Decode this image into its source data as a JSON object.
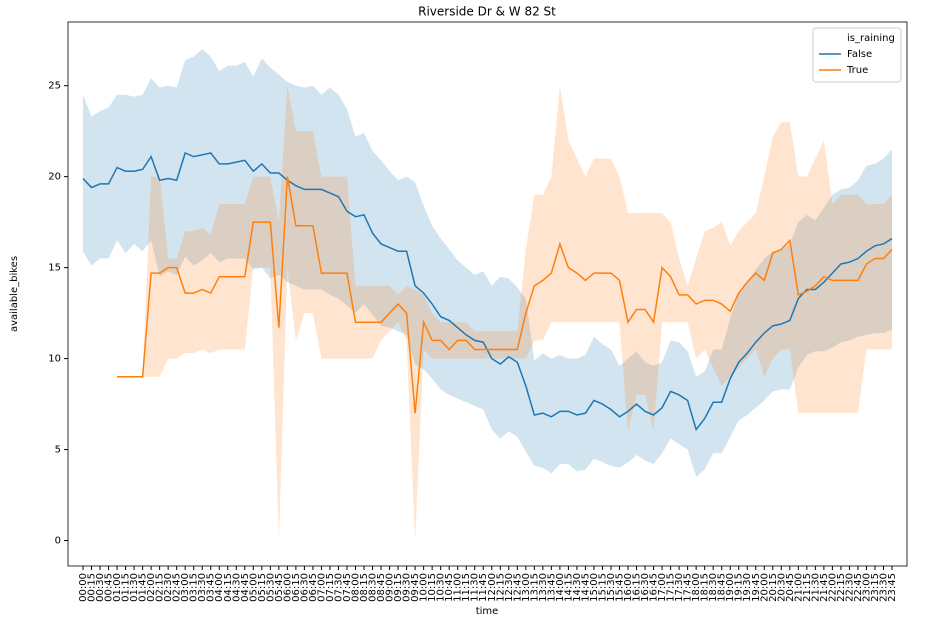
{
  "chart_data": {
    "type": "line",
    "title": "Riverside Dr & W 82 St",
    "x_label": "time",
    "y_label": "available_bikes",
    "legend_title": "is_raining",
    "legend": "upper right",
    "ylim": [
      -1.4,
      28.5
    ],
    "yticks": [
      0,
      5,
      10,
      15,
      20,
      25
    ],
    "grid": false,
    "categories": [
      "00:00",
      "00:15",
      "00:30",
      "00:45",
      "01:00",
      "01:15",
      "01:30",
      "01:45",
      "02:00",
      "02:15",
      "02:30",
      "02:45",
      "03:00",
      "03:15",
      "03:30",
      "03:45",
      "04:00",
      "04:15",
      "04:30",
      "04:45",
      "05:00",
      "05:15",
      "05:30",
      "05:45",
      "06:00",
      "06:15",
      "06:30",
      "06:45",
      "07:00",
      "07:15",
      "07:30",
      "07:45",
      "08:00",
      "08:15",
      "08:30",
      "08:45",
      "09:00",
      "09:15",
      "09:30",
      "09:45",
      "10:00",
      "10:15",
      "10:30",
      "10:45",
      "11:00",
      "11:15",
      "11:30",
      "11:45",
      "12:00",
      "12:15",
      "12:30",
      "12:45",
      "13:00",
      "13:15",
      "13:30",
      "13:45",
      "14:00",
      "14:15",
      "14:30",
      "14:45",
      "15:00",
      "15:15",
      "15:30",
      "15:45",
      "16:00",
      "16:15",
      "16:30",
      "16:45",
      "17:00",
      "17:15",
      "17:30",
      "17:45",
      "18:00",
      "18:15",
      "18:30",
      "18:45",
      "19:00",
      "19:15",
      "19:30",
      "19:45",
      "20:00",
      "20:15",
      "20:30",
      "20:45",
      "21:00",
      "21:15",
      "21:30",
      "21:45",
      "22:00",
      "22:15",
      "22:30",
      "22:45",
      "23:00",
      "23:15",
      "23:30",
      "23:45"
    ],
    "series": [
      {
        "name": "False",
        "color": "#1f77b4",
        "values": [
          19.9,
          19.4,
          19.6,
          19.6,
          20.5,
          20.3,
          20.3,
          20.4,
          21.1,
          19.8,
          19.9,
          19.8,
          21.3,
          21.1,
          21.2,
          21.3,
          20.7,
          20.7,
          20.8,
          20.9,
          20.3,
          20.7,
          20.2,
          20.2,
          19.8,
          19.5,
          19.3,
          19.3,
          19.3,
          19.1,
          18.9,
          18.1,
          17.8,
          17.9,
          16.9,
          16.3,
          16.1,
          15.9,
          15.9,
          14.0,
          13.6,
          13.0,
          12.3,
          12.1,
          11.7,
          11.3,
          11.0,
          10.9,
          10.0,
          9.7,
          10.1,
          9.8,
          8.5,
          6.9,
          7.0,
          6.8,
          7.1,
          7.1,
          6.9,
          7.0,
          7.7,
          7.5,
          7.2,
          6.8,
          7.1,
          7.5,
          7.1,
          6.9,
          7.3,
          8.2,
          8.0,
          7.7,
          6.1,
          6.7,
          7.6,
          7.6,
          8.9,
          9.8,
          10.3,
          10.9,
          11.4,
          11.8,
          11.9,
          12.1,
          13.3,
          13.8,
          13.8,
          14.2,
          14.7,
          15.2,
          15.3,
          15.5,
          15.9,
          16.2,
          16.3,
          16.6
        ],
        "upper": [
          24.5,
          23.3,
          23.6,
          23.8,
          24.5,
          24.5,
          24.4,
          24.5,
          25.4,
          24.9,
          25.0,
          24.9,
          26.4,
          26.6,
          27.0,
          26.6,
          25.8,
          26.1,
          26.1,
          26.3,
          25.5,
          26.5,
          26.0,
          25.6,
          25.2,
          25.0,
          24.9,
          25.0,
          24.5,
          24.9,
          24.5,
          23.7,
          22.2,
          22.4,
          21.4,
          20.9,
          20.3,
          19.8,
          20.0,
          19.7,
          18.4,
          17.3,
          16.6,
          16.0,
          15.4,
          15.0,
          14.6,
          14.8,
          14.0,
          14.5,
          14.4,
          13.9,
          13.3,
          9.9,
          10.3,
          10.0,
          10.2,
          10.0,
          10.0,
          10.2,
          11.2,
          10.8,
          10.5,
          9.6,
          10.0,
          10.4,
          9.8,
          9.6,
          9.8,
          11.0,
          10.9,
          10.4,
          9.0,
          9.3,
          10.5,
          10.5,
          12.2,
          13.6,
          14.2,
          14.9,
          15.5,
          15.9,
          16.0,
          16.3,
          17.5,
          17.9,
          17.6,
          18.3,
          19.0,
          19.3,
          19.4,
          19.8,
          20.6,
          20.7,
          21.0,
          21.5
        ],
        "lower": [
          15.9,
          15.1,
          15.5,
          15.5,
          16.5,
          15.8,
          16.3,
          15.9,
          16.5,
          14.5,
          14.8,
          14.6,
          15.6,
          15.1,
          15.4,
          15.8,
          15.3,
          15.5,
          15.5,
          15.5,
          14.9,
          15.0,
          14.4,
          14.6,
          14.2,
          14.0,
          13.8,
          13.8,
          13.8,
          13.5,
          13.3,
          12.9,
          12.5,
          13.0,
          12.4,
          11.8,
          11.7,
          11.5,
          11.3,
          9.7,
          9.4,
          8.9,
          8.3,
          8.0,
          7.8,
          7.6,
          7.4,
          7.2,
          6.1,
          5.6,
          6.0,
          5.7,
          4.9,
          4.1,
          4.0,
          3.7,
          4.2,
          4.2,
          3.8,
          3.9,
          4.5,
          4.3,
          4.1,
          4.0,
          4.3,
          4.7,
          4.4,
          4.2,
          4.8,
          5.6,
          5.3,
          5.0,
          3.5,
          3.9,
          4.8,
          4.8,
          5.7,
          6.6,
          6.9,
          7.3,
          7.7,
          8.2,
          8.3,
          8.3,
          9.5,
          10.2,
          10.4,
          10.4,
          10.6,
          10.9,
          11.0,
          11.2,
          11.3,
          11.4,
          11.4,
          11.6
        ]
      },
      {
        "name": "True",
        "color": "#ff7f0e",
        "values": [
          null,
          null,
          null,
          null,
          9.0,
          9.0,
          9.0,
          9.0,
          14.7,
          14.7,
          15.0,
          15.0,
          13.6,
          13.6,
          13.8,
          13.6,
          14.5,
          14.5,
          14.5,
          14.5,
          17.5,
          17.5,
          17.5,
          11.7,
          20.0,
          17.3,
          17.3,
          17.3,
          14.7,
          14.7,
          14.7,
          14.7,
          12.0,
          12.0,
          12.0,
          12.0,
          12.5,
          13.0,
          12.5,
          7.0,
          12.0,
          11.0,
          11.0,
          10.5,
          11.0,
          11.0,
          10.5,
          10.5,
          10.5,
          10.5,
          10.5,
          10.5,
          12.5,
          14.0,
          14.3,
          14.7,
          16.3,
          15.0,
          14.7,
          14.3,
          14.7,
          14.7,
          14.7,
          14.3,
          12.0,
          12.7,
          12.7,
          12.0,
          15.0,
          14.5,
          13.5,
          13.5,
          13.0,
          13.2,
          13.2,
          13.0,
          12.6,
          13.6,
          14.2,
          14.7,
          14.3,
          15.8,
          16.0,
          16.5,
          13.5,
          13.7,
          14.0,
          14.5,
          14.3,
          14.3,
          14.3,
          14.3,
          15.2,
          15.5,
          15.5,
          16.0
        ],
        "upper": [
          null,
          null,
          null,
          null,
          9.0,
          9.0,
          9.0,
          9.0,
          20.0,
          20.0,
          15.5,
          15.5,
          17.0,
          17.0,
          17.2,
          16.8,
          18.5,
          18.5,
          18.5,
          18.5,
          20.0,
          20.0,
          20.0,
          17.5,
          25.0,
          22.5,
          22.5,
          22.5,
          20.0,
          20.0,
          20.0,
          20.0,
          14.0,
          14.0,
          14.0,
          14.0,
          14.0,
          13.5,
          14.0,
          13.8,
          13.5,
          12.5,
          12.0,
          12.0,
          12.0,
          12.0,
          11.5,
          11.5,
          11.5,
          11.5,
          11.5,
          11.5,
          16.0,
          19.0,
          19.0,
          20.0,
          25.0,
          22.0,
          21.0,
          20.0,
          21.0,
          21.0,
          21.0,
          20.0,
          18.0,
          18.0,
          18.0,
          18.0,
          18.0,
          17.5,
          15.5,
          14.0,
          15.5,
          17.0,
          17.2,
          17.5,
          16.2,
          17.0,
          17.5,
          18.0,
          20.0,
          22.2,
          23.0,
          23.0,
          20.0,
          20.0,
          21.0,
          22.0,
          18.5,
          19.0,
          19.0,
          19.0,
          18.5,
          18.5,
          18.5,
          19.0
        ],
        "lower": [
          null,
          null,
          null,
          null,
          9.0,
          9.0,
          9.0,
          9.0,
          9.0,
          9.0,
          10.0,
          10.0,
          10.3,
          10.3,
          10.5,
          10.3,
          10.5,
          10.5,
          10.5,
          10.5,
          15.0,
          15.0,
          15.0,
          0.0,
          15.0,
          11.0,
          12.5,
          12.5,
          10.0,
          10.0,
          10.0,
          10.0,
          10.0,
          10.0,
          10.0,
          11.0,
          11.5,
          12.0,
          11.0,
          0.0,
          10.5,
          10.0,
          10.0,
          10.0,
          10.0,
          10.0,
          10.0,
          10.0,
          10.0,
          10.0,
          10.0,
          10.0,
          10.0,
          11.0,
          11.0,
          12.0,
          12.0,
          12.0,
          12.0,
          12.0,
          12.0,
          12.0,
          12.0,
          12.0,
          6.0,
          8.0,
          8.0,
          6.0,
          12.0,
          12.0,
          12.0,
          12.0,
          10.0,
          10.5,
          9.5,
          8.5,
          9.0,
          9.5,
          10.0,
          10.5,
          9.0,
          10.0,
          10.5,
          10.5,
          7.0,
          7.0,
          7.0,
          7.0,
          7.0,
          7.0,
          7.0,
          7.0,
          10.5,
          10.5,
          10.5,
          10.5
        ]
      }
    ]
  }
}
